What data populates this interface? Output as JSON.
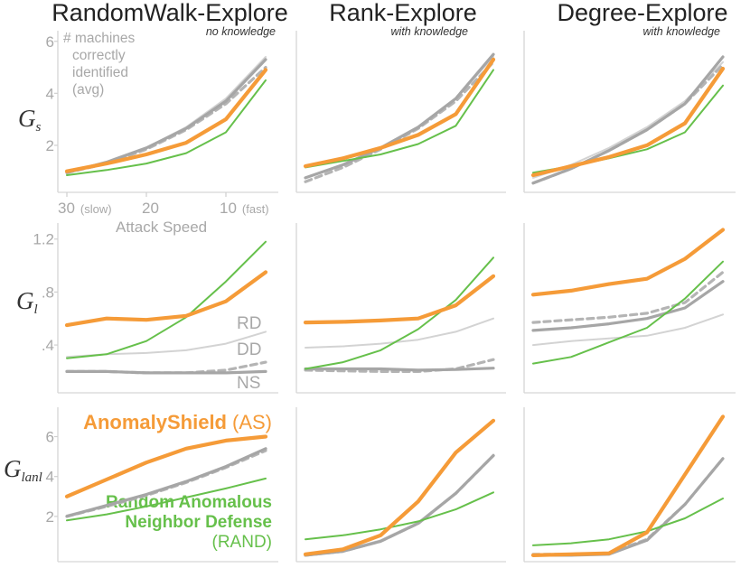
{
  "colors": {
    "anomalyshield": "#f59b38",
    "rand": "#66c04b",
    "rd": "#d3d3d3",
    "dd": "#b4b4b4",
    "ns": "#a6a6a6",
    "text_gray": "#a8a8a8"
  },
  "columns": [
    {
      "title": "RandomWalk-Explore",
      "subtitle": "no knowledge"
    },
    {
      "title": "Rank-Explore",
      "subtitle": "with knowledge"
    },
    {
      "title": "Degree-Explore",
      "subtitle": "with knowledge"
    }
  ],
  "rows": [
    {
      "label_main": "G",
      "label_sub": "s"
    },
    {
      "label_main": "G",
      "label_sub": "l"
    },
    {
      "label_main": "G",
      "label_sub": "lanl"
    }
  ],
  "x_axis": {
    "label": "Attack Speed",
    "ticks": [
      {
        "value": "30",
        "note": "(slow)"
      },
      {
        "value": "20",
        "note": ""
      },
      {
        "value": "10",
        "note": "(fast)"
      }
    ]
  },
  "annotations": {
    "gs_ylabel": [
      "# machines",
      "correctly",
      "identified",
      "(avg)"
    ],
    "rd": "RD",
    "dd": "DD",
    "ns": "NS",
    "anomalyshield_name": "AnomalyShield",
    "anomalyshield_abbr": "(AS)",
    "rand_line1": "Random Anomalous",
    "rand_line2": "Neighbor Defense",
    "rand_abbr": "(RAND)"
  },
  "chart_data": [
    {
      "type": "line",
      "row": "Gs",
      "column": "RandomWalk-Explore",
      "x": [
        30,
        25,
        20,
        15,
        10,
        5
      ],
      "ylim": [
        0.4,
        6.2
      ],
      "yticks": [
        "2",
        "4",
        "6"
      ],
      "ytick_values": [
        2,
        4,
        6
      ],
      "series": [
        {
          "name": "AS",
          "values": [
            1.0,
            1.3,
            1.65,
            2.1,
            3.0,
            4.9
          ]
        },
        {
          "name": "RAND",
          "values": [
            0.85,
            1.05,
            1.3,
            1.7,
            2.5,
            4.5
          ]
        },
        {
          "name": "RD",
          "values": [
            0.95,
            1.35,
            1.9,
            2.7,
            3.8,
            5.4
          ]
        },
        {
          "name": "DD",
          "values": [
            0.95,
            1.3,
            1.85,
            2.6,
            3.6,
            5.0
          ]
        },
        {
          "name": "NS",
          "values": [
            0.95,
            1.35,
            1.9,
            2.65,
            3.7,
            5.3
          ]
        }
      ]
    },
    {
      "type": "line",
      "row": "Gs",
      "column": "Rank-Explore",
      "x": [
        30,
        25,
        20,
        15,
        10,
        5
      ],
      "ylim": [
        0.2,
        6.0
      ],
      "yticks": [],
      "ytick_values": [],
      "series": [
        {
          "name": "AS",
          "values": [
            1.0,
            1.3,
            1.7,
            2.2,
            3.0,
            5.1
          ]
        },
        {
          "name": "RAND",
          "values": [
            0.95,
            1.2,
            1.45,
            1.85,
            2.55,
            4.7
          ]
        },
        {
          "name": "RD",
          "values": [
            0.55,
            1.05,
            1.7,
            2.5,
            3.6,
            5.2
          ]
        },
        {
          "name": "DD",
          "values": [
            0.4,
            0.95,
            1.65,
            2.45,
            3.5,
            5.0
          ]
        },
        {
          "name": "NS",
          "values": [
            0.55,
            1.05,
            1.7,
            2.5,
            3.6,
            5.3
          ]
        }
      ]
    },
    {
      "type": "line",
      "row": "Gs",
      "column": "Degree-Explore",
      "x": [
        30,
        25,
        20,
        15,
        10,
        5
      ],
      "ylim": [
        0.2,
        6.0
      ],
      "yticks": [],
      "ytick_values": [],
      "series": [
        {
          "name": "AS",
          "values": [
            0.65,
            1.0,
            1.35,
            1.8,
            2.65,
            4.75
          ]
        },
        {
          "name": "RAND",
          "values": [
            0.75,
            1.0,
            1.3,
            1.65,
            2.3,
            4.1
          ]
        },
        {
          "name": "RD",
          "values": [
            0.55,
            1.05,
            1.7,
            2.5,
            3.5,
            5.0
          ]
        },
        {
          "name": "DD",
          "values": [
            0.35,
            0.9,
            1.6,
            2.4,
            3.4,
            4.9
          ]
        },
        {
          "name": "NS",
          "values": [
            0.35,
            0.9,
            1.6,
            2.4,
            3.4,
            5.2
          ]
        }
      ]
    },
    {
      "type": "line",
      "row": "Gl",
      "column": "RandomWalk-Explore",
      "x": [
        30,
        25,
        20,
        15,
        10,
        5
      ],
      "ylim": [
        0.08,
        1.28
      ],
      "yticks": [
        ".4",
        ".8",
        "1.2"
      ],
      "ytick_values": [
        0.4,
        0.8,
        1.2
      ],
      "series": [
        {
          "name": "AS",
          "values": [
            0.55,
            0.6,
            0.59,
            0.62,
            0.73,
            0.95
          ]
        },
        {
          "name": "RAND",
          "values": [
            0.3,
            0.33,
            0.43,
            0.61,
            0.88,
            1.18
          ]
        },
        {
          "name": "RD",
          "values": [
            0.31,
            0.33,
            0.34,
            0.36,
            0.41,
            0.5
          ]
        },
        {
          "name": "DD",
          "values": [
            0.2,
            0.2,
            0.19,
            0.19,
            0.21,
            0.27
          ]
        },
        {
          "name": "NS",
          "values": [
            0.2,
            0.2,
            0.19,
            0.19,
            0.19,
            0.2
          ]
        }
      ]
    },
    {
      "type": "line",
      "row": "Gl",
      "column": "Rank-Explore",
      "x": [
        30,
        25,
        20,
        15,
        10,
        5
      ],
      "ylim": [
        0.08,
        1.28
      ],
      "yticks": [],
      "ytick_values": [],
      "series": [
        {
          "name": "AS",
          "values": [
            0.57,
            0.575,
            0.585,
            0.6,
            0.7,
            0.92
          ]
        },
        {
          "name": "RAND",
          "values": [
            0.22,
            0.27,
            0.36,
            0.52,
            0.74,
            1.06
          ]
        },
        {
          "name": "RD",
          "values": [
            0.38,
            0.39,
            0.41,
            0.44,
            0.5,
            0.6
          ]
        },
        {
          "name": "DD",
          "values": [
            0.21,
            0.205,
            0.2,
            0.2,
            0.22,
            0.29
          ]
        },
        {
          "name": "NS",
          "values": [
            0.22,
            0.22,
            0.22,
            0.21,
            0.215,
            0.225
          ]
        }
      ]
    },
    {
      "type": "line",
      "row": "Gl",
      "column": "Degree-Explore",
      "x": [
        30,
        25,
        20,
        15,
        10,
        5
      ],
      "ylim": [
        0.08,
        1.28
      ],
      "yticks": [],
      "ytick_values": [],
      "series": [
        {
          "name": "AS",
          "values": [
            0.78,
            0.81,
            0.86,
            0.9,
            1.05,
            1.27
          ]
        },
        {
          "name": "RAND",
          "values": [
            0.26,
            0.31,
            0.42,
            0.53,
            0.75,
            1.03
          ]
        },
        {
          "name": "RD",
          "values": [
            0.4,
            0.43,
            0.45,
            0.47,
            0.53,
            0.63
          ]
        },
        {
          "name": "DD",
          "values": [
            0.57,
            0.59,
            0.61,
            0.64,
            0.72,
            0.95
          ]
        },
        {
          "name": "NS",
          "values": [
            0.51,
            0.53,
            0.56,
            0.6,
            0.68,
            0.88
          ]
        }
      ]
    },
    {
      "type": "line",
      "row": "Glanl",
      "column": "RandomWalk-Explore",
      "x": [
        30,
        25,
        20,
        15,
        10,
        5
      ],
      "ylim": [
        0.0,
        7.2
      ],
      "yticks": [
        "2",
        "4",
        "6"
      ],
      "ytick_values": [
        2,
        4,
        6
      ],
      "series": [
        {
          "name": "AS",
          "values": [
            3.0,
            3.85,
            4.7,
            5.4,
            5.8,
            6.0
          ]
        },
        {
          "name": "RAND",
          "values": [
            1.8,
            2.1,
            2.5,
            2.95,
            3.4,
            3.9
          ]
        },
        {
          "name": "RD",
          "values": [
            2.05,
            2.55,
            3.1,
            3.75,
            4.5,
            5.4
          ]
        },
        {
          "name": "DD",
          "values": [
            2.0,
            2.5,
            3.05,
            3.7,
            4.45,
            5.3
          ]
        },
        {
          "name": "NS",
          "values": [
            2.0,
            2.55,
            3.1,
            3.75,
            4.5,
            5.4
          ]
        }
      ]
    },
    {
      "type": "line",
      "row": "Glanl",
      "column": "Rank-Explore",
      "x": [
        30,
        25,
        20,
        15,
        10,
        5
      ],
      "ylim": [
        0.0,
        7.2
      ],
      "yticks": [],
      "ytick_values": [],
      "series": [
        {
          "name": "AS",
          "values": [
            0.1,
            0.35,
            1.05,
            2.75,
            5.2,
            6.8
          ]
        },
        {
          "name": "RAND",
          "values": [
            0.85,
            1.05,
            1.35,
            1.75,
            2.35,
            3.2
          ]
        },
        {
          "name": "RD",
          "values": [
            0.1,
            0.3,
            0.8,
            1.7,
            3.2,
            5.1
          ]
        },
        {
          "name": "DD",
          "values": [
            0.05,
            0.25,
            0.75,
            1.65,
            3.15,
            5.05
          ]
        },
        {
          "name": "NS",
          "values": [
            0.05,
            0.25,
            0.75,
            1.65,
            3.15,
            5.05
          ]
        }
      ]
    },
    {
      "type": "line",
      "row": "Glanl",
      "column": "Degree-Explore",
      "x": [
        30,
        25,
        20,
        15,
        10,
        5
      ],
      "ylim": [
        0.0,
        7.2
      ],
      "yticks": [],
      "ytick_values": [],
      "series": [
        {
          "name": "AS",
          "values": [
            0.05,
            0.1,
            0.15,
            1.2,
            4.1,
            7.0
          ]
        },
        {
          "name": "RAND",
          "values": [
            0.55,
            0.65,
            0.85,
            1.25,
            1.9,
            2.9
          ]
        },
        {
          "name": "RD",
          "values": [
            0.05,
            0.05,
            0.1,
            0.8,
            2.6,
            4.9
          ]
        },
        {
          "name": "DD",
          "values": [
            0.1,
            0.1,
            0.15,
            0.85,
            2.6,
            4.9
          ]
        },
        {
          "name": "NS",
          "values": [
            0.05,
            0.05,
            0.1,
            0.8,
            2.6,
            4.9
          ]
        }
      ]
    }
  ]
}
